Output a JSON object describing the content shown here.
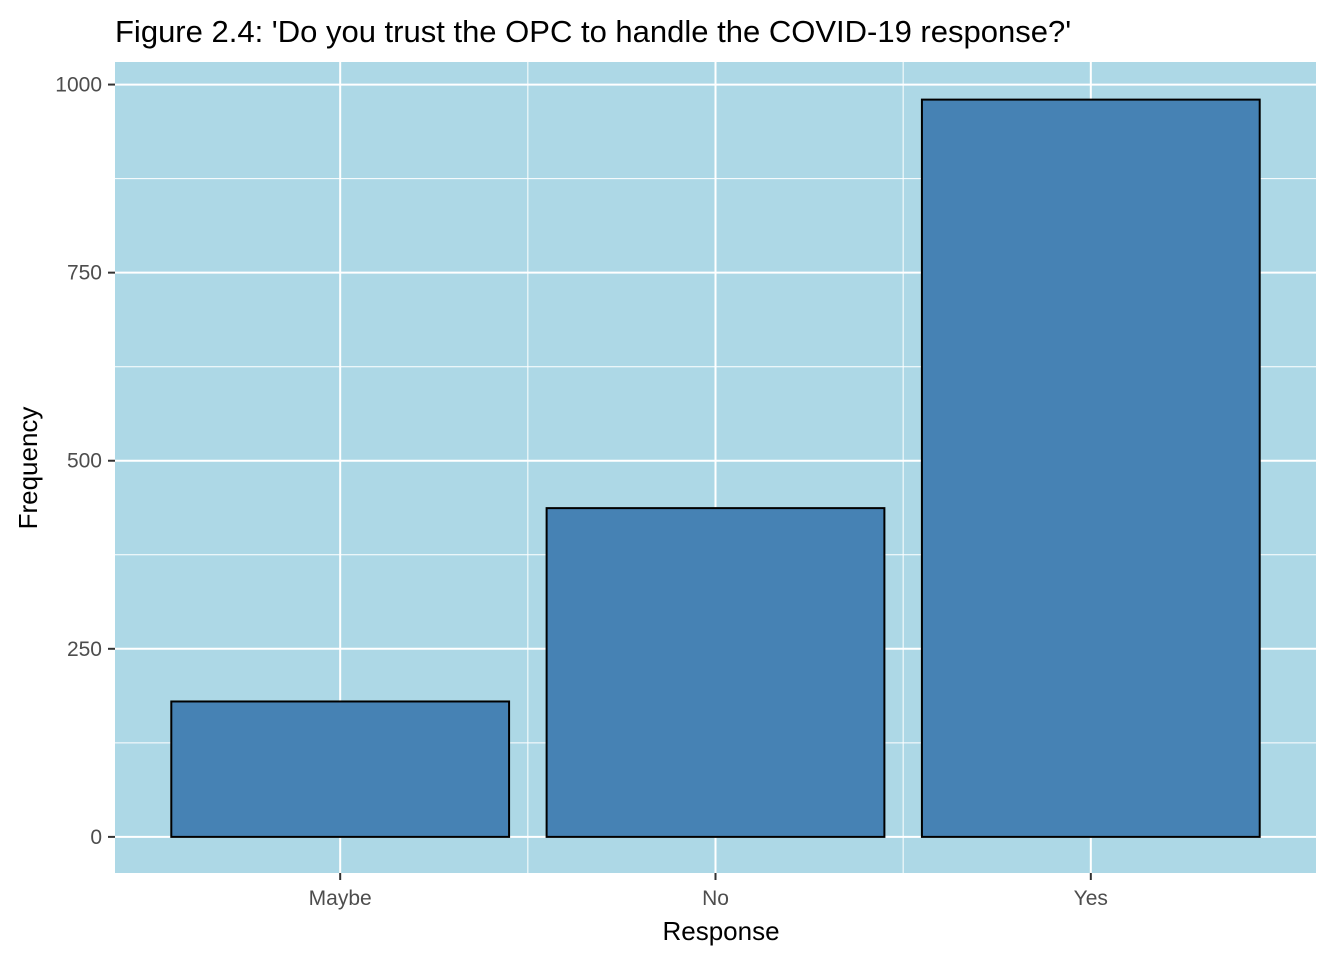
{
  "colors": {
    "panel_background": "#add8e6",
    "gridline": "#ffffff",
    "bar_fill": "#4682b4",
    "bar_outline": "#000000",
    "tick_color": "#333333"
  },
  "chart_data": {
    "type": "bar",
    "title": "Figure 2.4: 'Do you trust the OPC to handle the COVID-19 response?'",
    "xlabel": "Response",
    "ylabel": "Frequency",
    "categories": [
      "Maybe",
      "No",
      "Yes"
    ],
    "values": [
      180,
      437,
      980
    ],
    "ylim": [
      -48,
      1030
    ],
    "y_ticks": [
      0,
      250,
      500,
      750,
      1000
    ],
    "y_tick_labels": [
      "0",
      "250",
      "500",
      "750",
      "1000"
    ],
    "grid": true,
    "legend": "none"
  }
}
